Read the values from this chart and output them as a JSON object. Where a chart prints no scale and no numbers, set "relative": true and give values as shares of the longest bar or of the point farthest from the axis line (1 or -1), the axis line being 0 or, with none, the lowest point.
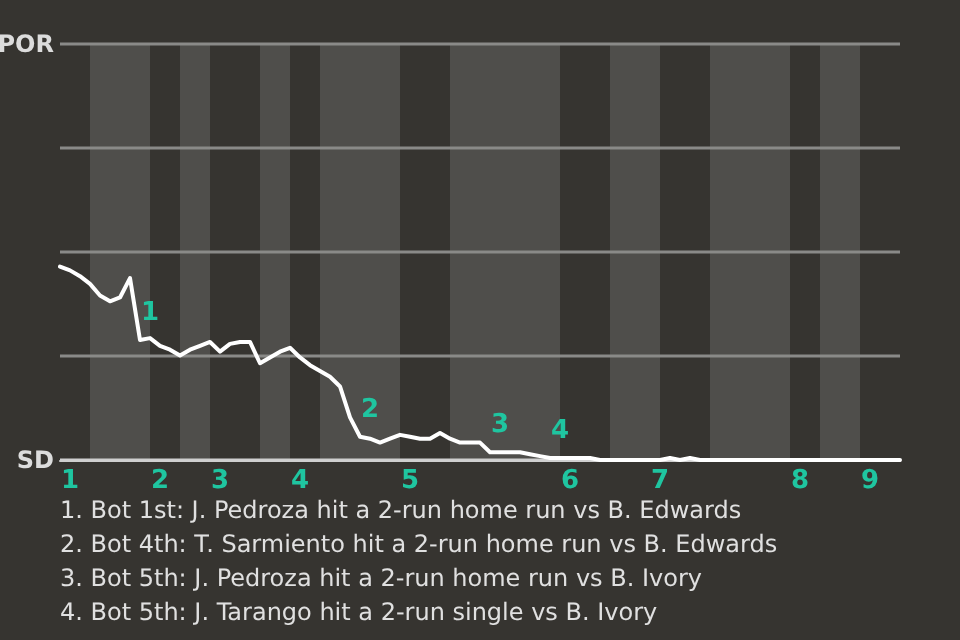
{
  "chart_data": {
    "type": "line",
    "relative": true,
    "categories": [
      null,
      "1",
      null,
      null,
      null,
      null,
      null,
      null,
      null,
      null,
      "2",
      null,
      null,
      null,
      null,
      null,
      "3",
      null,
      null,
      null,
      null,
      null,
      null,
      null,
      "4",
      null,
      null,
      null,
      null,
      null,
      null,
      null,
      null,
      null,
      null,
      "5",
      null,
      null,
      null,
      null,
      null,
      null,
      null,
      null,
      null,
      null,
      null,
      null,
      null,
      null,
      null,
      "6",
      null,
      null,
      null,
      null,
      null,
      null,
      null,
      null,
      "7",
      null,
      null,
      null,
      null,
      null,
      null,
      null,
      null,
      null,
      null,
      null,
      null,
      null,
      "8",
      null,
      null,
      null,
      null,
      null,
      null,
      "9",
      null,
      null,
      null
    ],
    "series": [
      {
        "color": "#ffffff",
        "values": [
          1.0,
          0.98,
          0.95,
          0.91,
          0.85,
          0.82,
          0.84,
          0.94,
          0.62,
          0.63,
          0.59,
          0.57,
          0.54,
          0.57,
          0.59,
          0.61,
          0.56,
          0.6,
          0.61,
          0.61,
          0.5,
          0.53,
          0.56,
          0.58,
          0.53,
          0.49,
          0.46,
          0.43,
          0.38,
          0.22,
          0.12,
          0.11,
          0.09,
          0.11,
          0.13,
          0.12,
          0.11,
          0.11,
          0.14,
          0.11,
          0.09,
          0.09,
          0.09,
          0.04,
          0.04,
          0.04,
          0.04,
          0.03,
          0.02,
          0.01,
          0.01,
          0.01,
          0.01,
          0.01,
          0,
          0,
          0,
          0,
          0,
          0,
          0,
          0.01,
          0,
          0.01,
          0,
          0,
          0,
          0,
          0,
          0,
          0,
          0,
          0,
          0,
          0,
          0,
          0,
          0,
          0,
          0,
          0,
          0,
          0,
          0,
          0
        ]
      }
    ],
    "marker": "none",
    "line_style": "solid",
    "ref_lines": [
      {
        "axis": "y",
        "value": 0,
        "label": "SD",
        "color": "#cfcfcf"
      },
      {
        "axis": "y",
        "value": 0.54,
        "label": null,
        "color": "#8a8a88"
      },
      {
        "axis": "y",
        "value": 1.08,
        "label": null,
        "color": "#8a8a88"
      },
      {
        "axis": "y",
        "value": 1.61,
        "label": null,
        "color": "#8a8a88"
      },
      {
        "axis": "y",
        "value": 2.15,
        "label": "POR",
        "color": "#8a8a88"
      }
    ],
    "annotations": [
      {
        "text": "1",
        "y": 0.62
      },
      {
        "text": "2",
        "y": 0.12
      },
      {
        "text": "3",
        "y": 0.04
      },
      {
        "text": "4",
        "y": 0.01
      },
      "1. Bot 1st: J. Pedroza hit a 2-run home run vs B. Edwards",
      "2. Bot 4th: T. Sarmiento hit a 2-run home run vs B. Edwards",
      "3. Bot 5th: J. Pedroza hit a 2-run home run vs B. Ivory",
      "4. Bot 5th: J. Tarango hit a 2-run single vs B. Ivory"
    ]
  }
}
